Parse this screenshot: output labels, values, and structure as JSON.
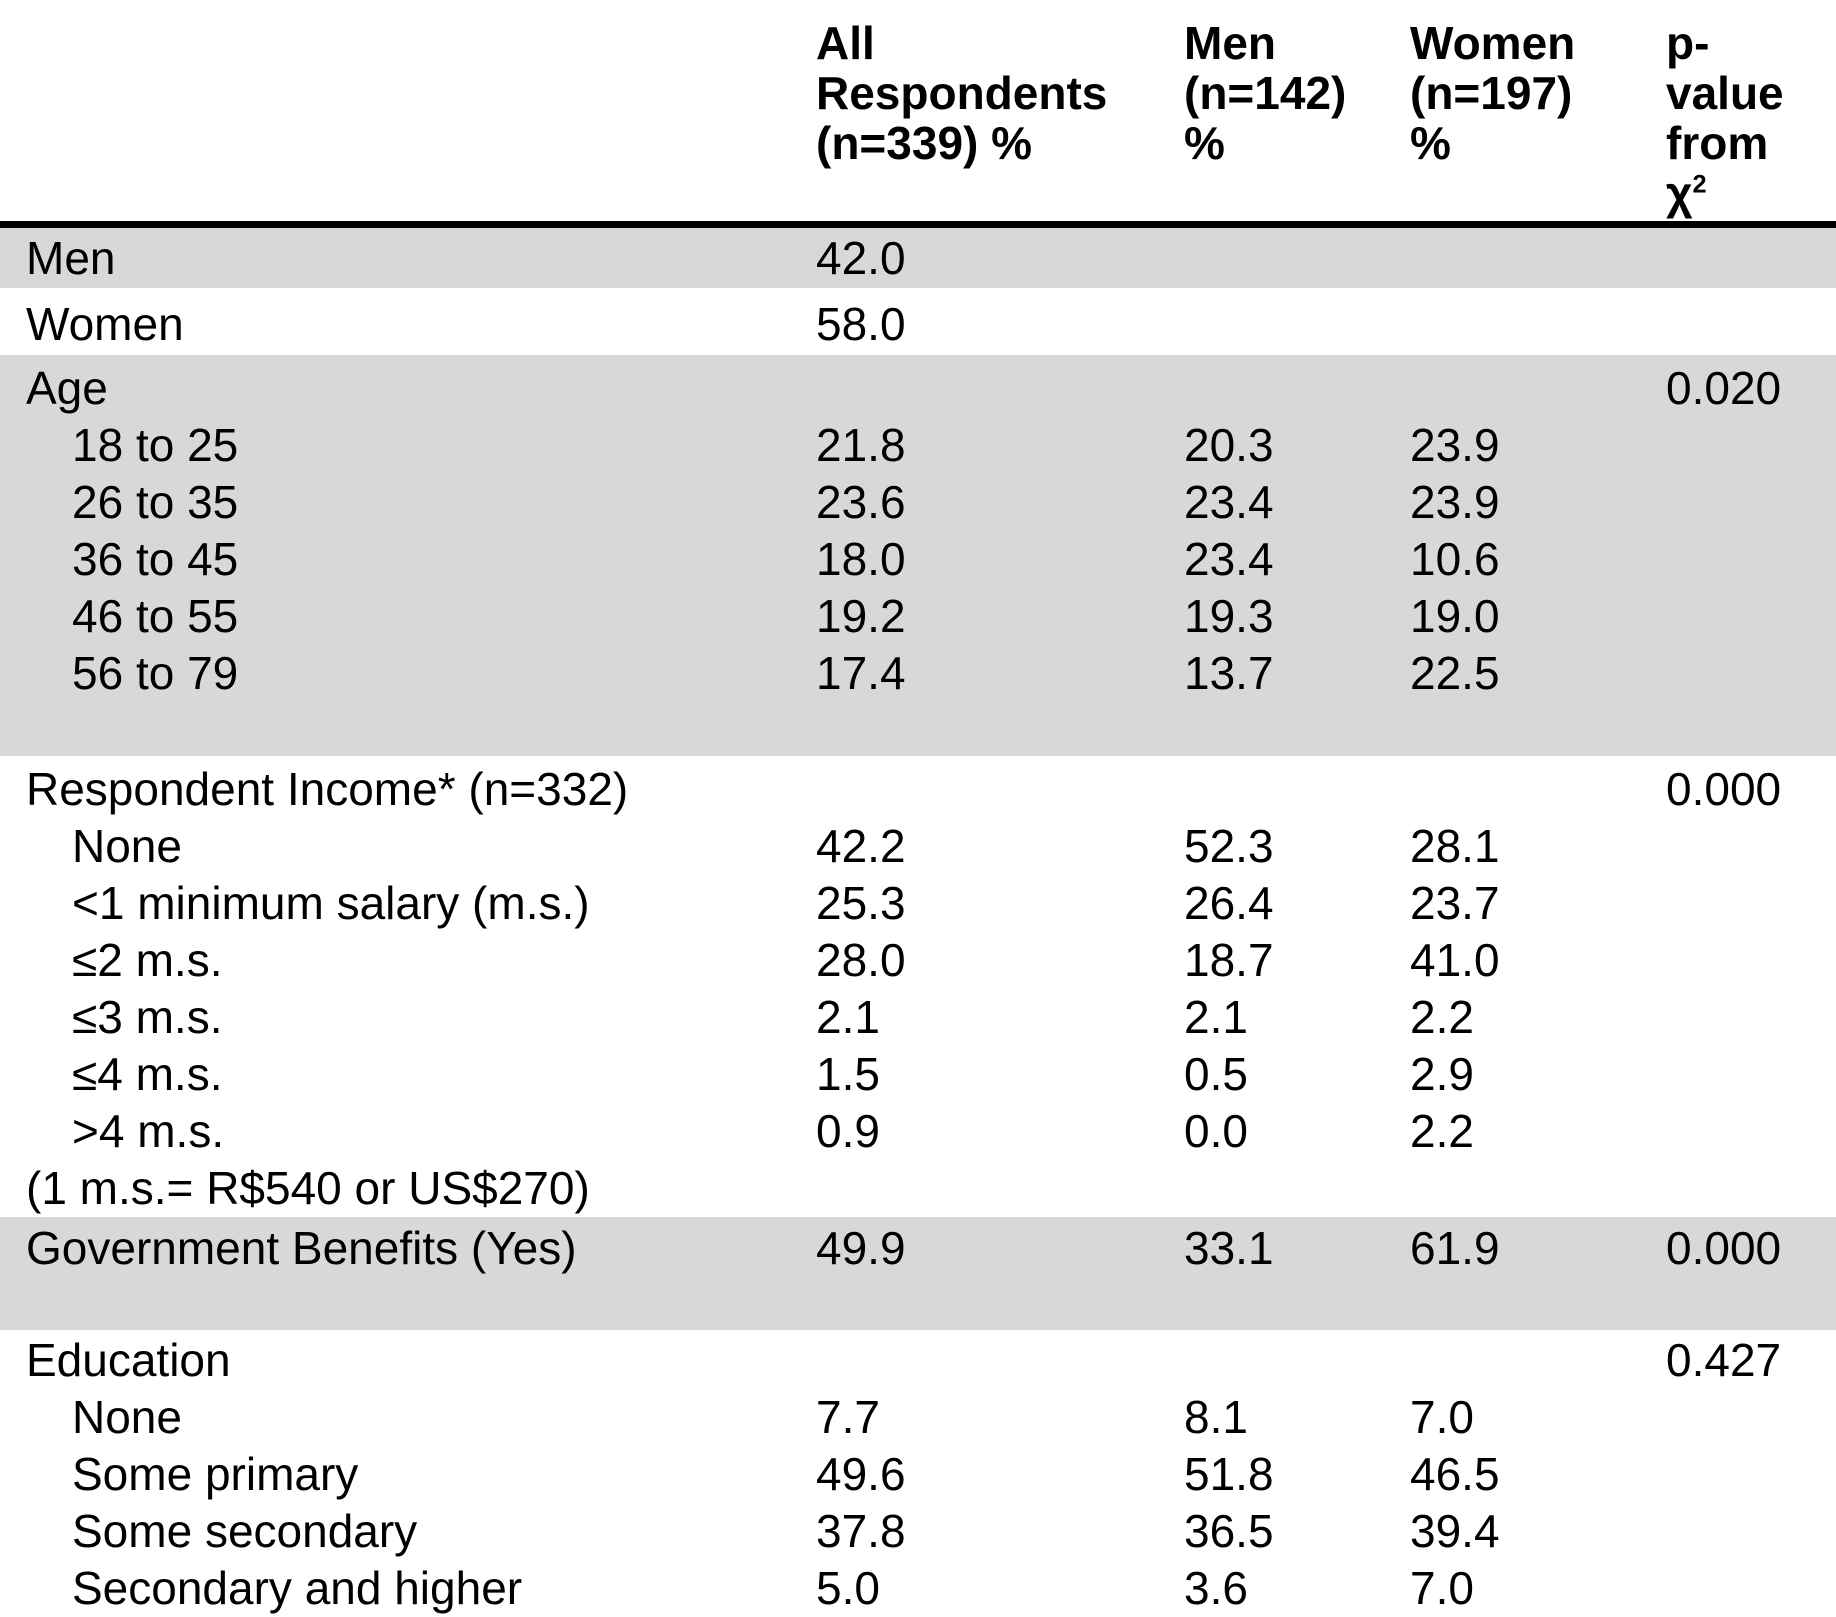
{
  "colors": {
    "shaded_row_bg": "#d8d8d8",
    "rule_color": "#000000",
    "text_color": "#000000"
  },
  "header": {
    "all": {
      "lines": [
        "All",
        "Respondents",
        "(n=339) %"
      ]
    },
    "men": {
      "lines": [
        "Men",
        "(n=142)",
        "%"
      ]
    },
    "women": {
      "lines": [
        "Women",
        "(n=197)",
        "%"
      ]
    },
    "p": {
      "lines": [
        "p-",
        "value",
        "from"
      ],
      "chi": "χ",
      "sup": "2"
    }
  },
  "sections": [
    {
      "name": "men",
      "rows": [
        {
          "label": "Men",
          "all": "42.0"
        }
      ]
    },
    {
      "name": "women",
      "rows": [
        {
          "label": "Women",
          "all": "58.0"
        }
      ]
    },
    {
      "name": "age",
      "rows": [
        {
          "label": "Age",
          "p": "0.020"
        },
        {
          "label": "18 to 25",
          "all": "21.8",
          "men": "20.3",
          "women": "23.9"
        },
        {
          "label": "26 to 35",
          "all": "23.6",
          "men": "23.4",
          "women": "23.9"
        },
        {
          "label": "36 to 45",
          "all": "18.0",
          "men": "23.4",
          "women": "10.6"
        },
        {
          "label": "46 to 55",
          "all": "19.2",
          "men": "19.3",
          "women": "19.0"
        },
        {
          "label": "56 to 79",
          "all": "17.4",
          "men": "13.7",
          "women": "22.5"
        }
      ]
    },
    {
      "name": "income",
      "rows": [
        {
          "label": "Respondent Income* (n=332)",
          "p": "0.000"
        },
        {
          "label": "None",
          "all": "42.2",
          "men": "52.3",
          "women": "28.1"
        },
        {
          "label": "<1 minimum salary (m.s.)",
          "all": "25.3",
          "men": "26.4",
          "women": "23.7"
        },
        {
          "label": "≤2 m.s.",
          "all": "28.0",
          "men": "18.7",
          "women": "41.0"
        },
        {
          "label": "≤3 m.s.",
          "all": "2.1",
          "men": "2.1",
          "women": "2.2"
        },
        {
          "label": "≤4 m.s.",
          "all": "1.5",
          "men": "0.5",
          "women": "2.9"
        },
        {
          "label": ">4 m.s.",
          "all": "0.9",
          "men": "0.0",
          "women": "2.2"
        },
        {
          "label": "(1 m.s.= R$540 or US$270)"
        }
      ]
    },
    {
      "name": "government-benefits",
      "rows": [
        {
          "label": "Government Benefits (Yes)",
          "all": "49.9",
          "men": "33.1",
          "women": "61.9",
          "p": "0.000"
        }
      ]
    },
    {
      "name": "education",
      "rows": [
        {
          "label": "Education",
          "p": "0.427"
        },
        {
          "label": "None",
          "all": "7.7",
          "men": "8.1",
          "women": "7.0"
        },
        {
          "label": "Some primary",
          "all": "49.6",
          "men": "51.8",
          "women": "46.5"
        },
        {
          "label": "Some secondary",
          "all": "37.8",
          "men": "36.5",
          "women": "39.4"
        },
        {
          "label": "Secondary and higher",
          "all": "5.0",
          "men": "3.6",
          "women": "7.0"
        }
      ]
    }
  ]
}
